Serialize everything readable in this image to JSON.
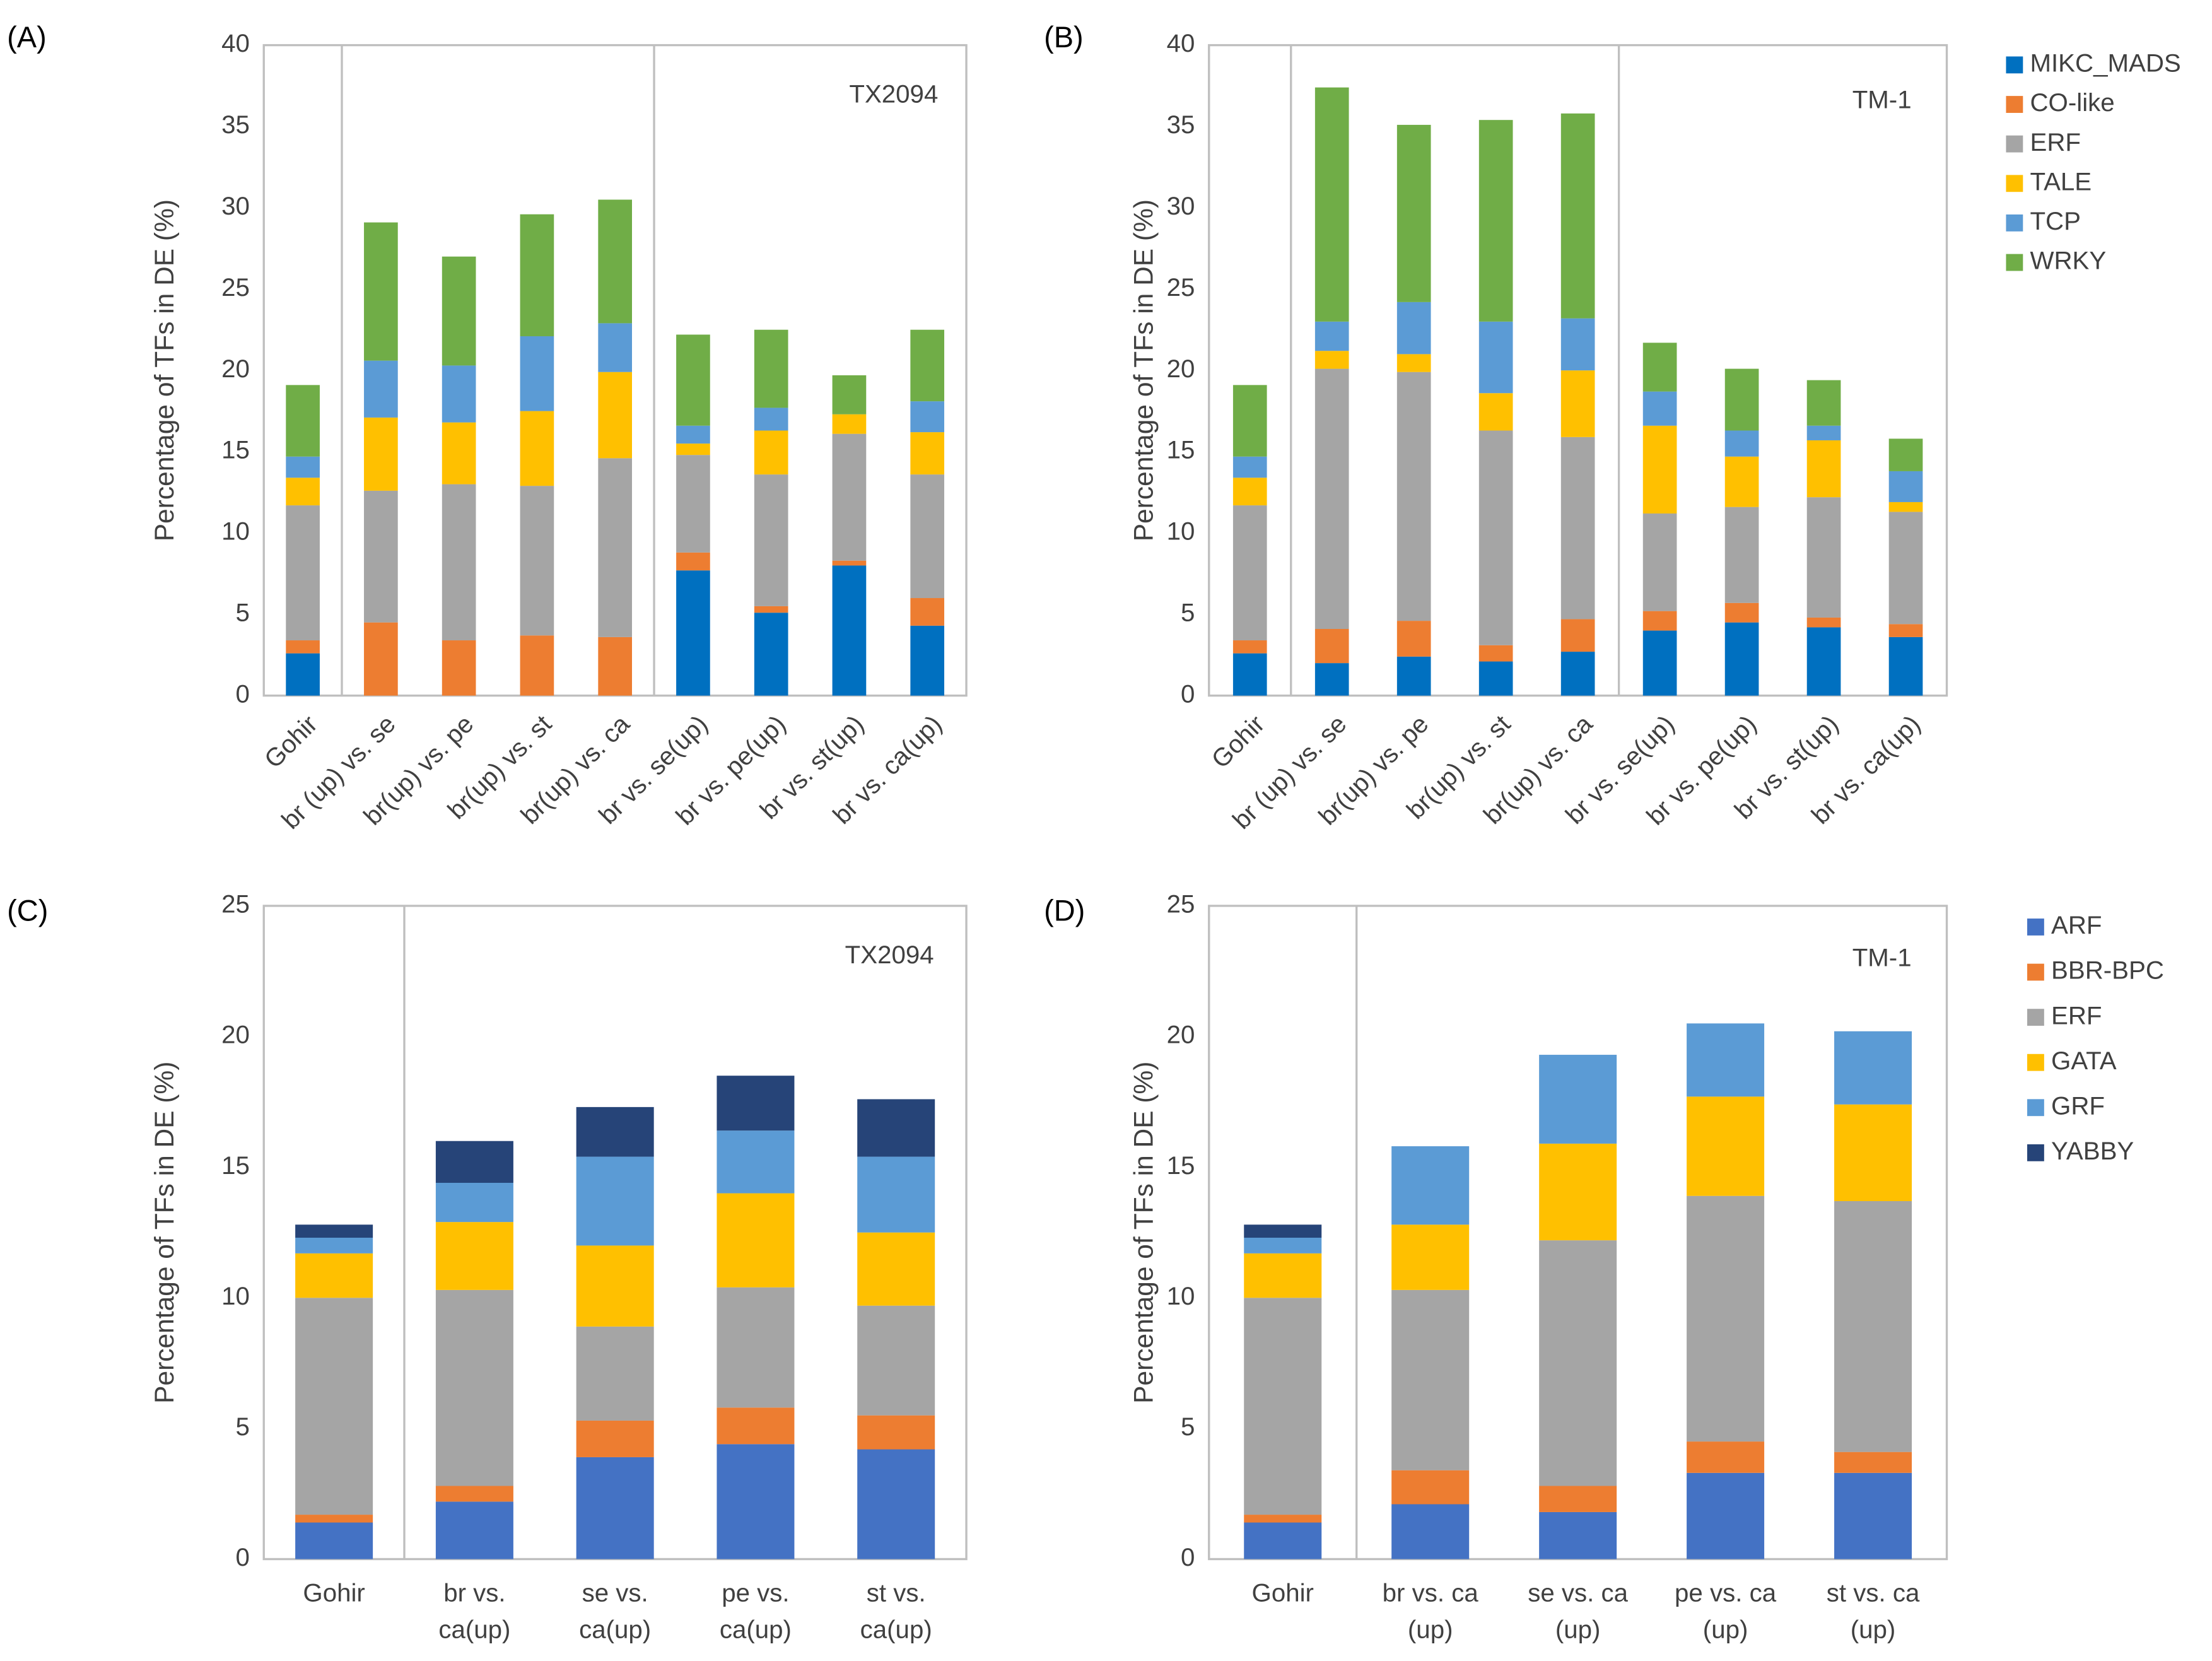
{
  "chart_data": [
    {
      "type": "stacked_bar",
      "panel_label": "(A)",
      "annotation": "TX2094",
      "ylabel": "Percentage of TFs in DE (%)",
      "categories": [
        "Gohir",
        "br (up) vs. se",
        "br(up) vs. pe",
        "br(up) vs. st",
        "br(up) vs. ca",
        "br vs. se(up)",
        "br vs. pe(up)",
        "br vs. st(up)",
        "br vs. ca(up)"
      ],
      "series": [
        {
          "name": "MIKC_MADS",
          "color": "#0070c0",
          "values": [
            2.6,
            0,
            0,
            0,
            0,
            7.7,
            5.1,
            8.0,
            4.3
          ]
        },
        {
          "name": "CO-like",
          "color": "#ed7d31",
          "values": [
            0.8,
            4.5,
            3.4,
            3.7,
            3.6,
            1.1,
            0.4,
            0.3,
            1.7
          ]
        },
        {
          "name": "ERF",
          "color": "#a5a5a5",
          "values": [
            8.3,
            8.1,
            9.6,
            9.2,
            11.0,
            6.0,
            8.1,
            7.8,
            7.6
          ]
        },
        {
          "name": "TALE",
          "color": "#ffc000",
          "values": [
            1.7,
            4.5,
            3.8,
            4.6,
            5.3,
            0.7,
            2.7,
            1.2,
            2.6
          ]
        },
        {
          "name": "TCP",
          "color": "#5b9bd5",
          "values": [
            1.3,
            3.5,
            3.5,
            4.6,
            3.0,
            1.1,
            1.4,
            0,
            1.9
          ]
        },
        {
          "name": "WRKY",
          "color": "#70ad47",
          "values": [
            4.4,
            8.5,
            6.7,
            7.5,
            7.6,
            5.6,
            4.8,
            2.4,
            4.4
          ]
        }
      ],
      "ylim": [
        0,
        40
      ],
      "yticks": [
        0,
        5,
        10,
        15,
        20,
        25,
        30,
        35,
        40
      ],
      "legend": false
    },
    {
      "type": "stacked_bar",
      "panel_label": "(B)",
      "annotation": "TM-1",
      "ylabel": "Percentage of TFs in DE (%)",
      "categories": [
        "Gohir",
        "br (up) vs. se",
        "br(up) vs. pe",
        "br(up) vs. st",
        "br(up) vs. ca",
        "br vs. se(up)",
        "br vs. pe(up)",
        "br vs. st(up)",
        "br vs. ca(up)"
      ],
      "series": [
        {
          "name": "MIKC_MADS",
          "color": "#0070c0",
          "values": [
            2.6,
            2.0,
            2.4,
            2.1,
            2.7,
            4.0,
            4.5,
            4.2,
            3.6
          ]
        },
        {
          "name": "CO-like",
          "color": "#ed7d31",
          "values": [
            0.8,
            2.1,
            2.2,
            1.0,
            2.0,
            1.2,
            1.2,
            0.6,
            0.8
          ]
        },
        {
          "name": "ERF",
          "color": "#a5a5a5",
          "values": [
            8.3,
            16.0,
            15.3,
            13.2,
            11.2,
            6.0,
            5.9,
            7.4,
            6.9
          ]
        },
        {
          "name": "TALE",
          "color": "#ffc000",
          "values": [
            1.7,
            1.1,
            1.1,
            2.3,
            4.1,
            5.4,
            3.1,
            3.5,
            0.6
          ]
        },
        {
          "name": "TCP",
          "color": "#5b9bd5",
          "values": [
            1.3,
            1.8,
            3.2,
            4.4,
            3.2,
            2.1,
            1.6,
            0.9,
            1.9
          ]
        },
        {
          "name": "WRKY",
          "color": "#70ad47",
          "values": [
            4.4,
            14.4,
            10.9,
            12.4,
            12.6,
            3.0,
            3.8,
            2.8,
            2.0
          ]
        }
      ],
      "ylim": [
        0,
        40
      ],
      "yticks": [
        0,
        5,
        10,
        15,
        20,
        25,
        30,
        35,
        40
      ],
      "legend": "right"
    },
    {
      "type": "stacked_bar",
      "panel_label": "(C)",
      "annotation": "TX2094",
      "ylabel": "Percentage of TFs in DE (%)",
      "categories": [
        "Gohir",
        "br vs.\nca(up)",
        "se vs.\nca(up)",
        "pe vs.\nca(up)",
        "st vs.\nca(up)"
      ],
      "series": [
        {
          "name": "ARF",
          "color": "#4472c4",
          "values": [
            1.4,
            2.2,
            3.9,
            4.4,
            4.2
          ]
        },
        {
          "name": "BBR-BPC",
          "color": "#ed7d31",
          "values": [
            0.3,
            0.6,
            1.4,
            1.4,
            1.3
          ]
        },
        {
          "name": "ERF",
          "color": "#a5a5a5",
          "values": [
            8.3,
            7.5,
            3.6,
            4.6,
            4.2
          ]
        },
        {
          "name": "GATA",
          "color": "#ffc000",
          "values": [
            1.7,
            2.6,
            3.1,
            3.6,
            2.8
          ]
        },
        {
          "name": "GRF",
          "color": "#5b9bd5",
          "values": [
            0.6,
            1.5,
            3.4,
            2.4,
            2.9
          ]
        },
        {
          "name": "YABBY",
          "color": "#264478",
          "values": [
            0.5,
            1.6,
            1.9,
            2.1,
            2.2
          ]
        }
      ],
      "ylim": [
        0,
        25
      ],
      "yticks": [
        0,
        5,
        10,
        15,
        20,
        25
      ],
      "legend": false
    },
    {
      "type": "stacked_bar",
      "panel_label": "(D)",
      "annotation": "TM-1",
      "ylabel": "Percentage of TFs in DE (%)",
      "categories": [
        "Gohir",
        "br vs. ca\n(up)",
        "se vs. ca\n(up)",
        "pe vs. ca\n(up)",
        "st vs. ca\n(up)"
      ],
      "series": [
        {
          "name": "ARF",
          "color": "#4472c4",
          "values": [
            1.4,
            2.1,
            1.8,
            3.3,
            3.3
          ]
        },
        {
          "name": "BBR-BPC",
          "color": "#ed7d31",
          "values": [
            0.3,
            1.3,
            1.0,
            1.2,
            0.8
          ]
        },
        {
          "name": "ERF",
          "color": "#a5a5a5",
          "values": [
            8.3,
            6.9,
            9.4,
            9.4,
            9.6
          ]
        },
        {
          "name": "GATA",
          "color": "#ffc000",
          "values": [
            1.7,
            2.5,
            3.7,
            3.8,
            3.7
          ]
        },
        {
          "name": "GRF",
          "color": "#5b9bd5",
          "values": [
            0.6,
            3.0,
            3.4,
            2.8,
            2.8
          ]
        },
        {
          "name": "YABBY",
          "color": "#264478",
          "values": [
            0.5,
            0,
            0,
            0,
            0
          ]
        }
      ],
      "ylim": [
        0,
        25
      ],
      "yticks": [
        0,
        5,
        10,
        15,
        20,
        25
      ],
      "legend": "right"
    }
  ]
}
